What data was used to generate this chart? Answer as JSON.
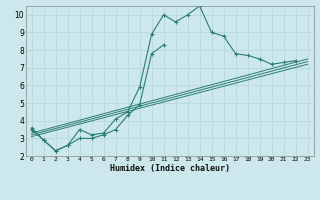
{
  "xlabel": "Humidex (Indice chaleur)",
  "background_color": "#cce8ec",
  "grid_color": "#b8d8dc",
  "line_color": "#2d7d6e",
  "xlim": [
    -0.5,
    23.5
  ],
  "ylim": [
    2,
    10.5
  ],
  "xticks": [
    0,
    1,
    2,
    3,
    4,
    5,
    6,
    7,
    8,
    9,
    10,
    11,
    12,
    13,
    14,
    15,
    16,
    17,
    18,
    19,
    20,
    21,
    22,
    23
  ],
  "yticks": [
    2,
    3,
    4,
    5,
    6,
    7,
    8,
    9,
    10
  ],
  "series_main": {
    "x": [
      0,
      1,
      2,
      3,
      4,
      5,
      6,
      7,
      8,
      9,
      10,
      11,
      12,
      13,
      14,
      15,
      16,
      17,
      18,
      19,
      20,
      21,
      22
    ],
    "y": [
      3.6,
      2.9,
      2.3,
      2.6,
      3.5,
      3.2,
      3.3,
      4.1,
      4.5,
      5.9,
      8.9,
      10.0,
      9.6,
      10.0,
      10.5,
      9.0,
      8.8,
      7.8,
      7.7,
      7.5,
      7.2,
      7.3,
      7.4
    ]
  },
  "series_second": {
    "x": [
      0,
      1,
      2,
      3,
      4,
      5,
      6,
      7,
      8,
      9,
      10,
      11
    ],
    "y": [
      3.5,
      2.9,
      2.3,
      2.6,
      3.0,
      3.0,
      3.2,
      3.5,
      4.3,
      4.9,
      7.8,
      8.3
    ]
  },
  "straight_lines": [
    {
      "x": [
        0,
        23
      ],
      "y": [
        3.3,
        7.5
      ]
    },
    {
      "x": [
        0,
        23
      ],
      "y": [
        3.2,
        7.35
      ]
    },
    {
      "x": [
        0,
        23
      ],
      "y": [
        3.1,
        7.2
      ]
    }
  ]
}
